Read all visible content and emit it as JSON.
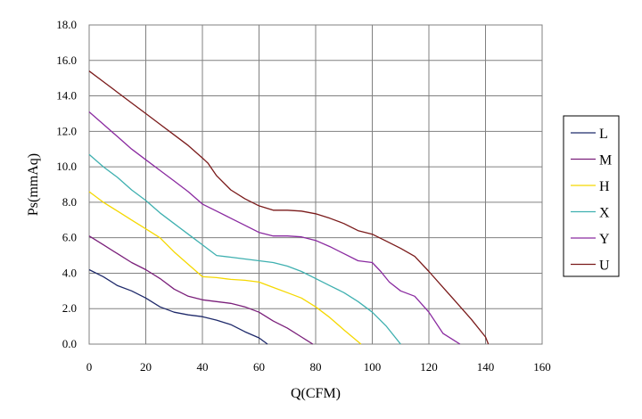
{
  "chart_data": {
    "type": "line",
    "title": "",
    "xlabel": "Q(CFM)",
    "ylabel": "Ps(mmAq)",
    "xlim": [
      0,
      160
    ],
    "ylim": [
      0,
      18
    ],
    "x_ticks": [
      "0",
      "20",
      "40",
      "60",
      "80",
      "100",
      "120",
      "140",
      "160"
    ],
    "y_ticks": [
      "0.0",
      "2.0",
      "4.0",
      "6.0",
      "8.0",
      "10.0",
      "12.0",
      "14.0",
      "16.0",
      "18.0"
    ],
    "grid": true,
    "legend_position": "right",
    "series": [
      {
        "name": "L",
        "color": "#1f2a6b",
        "points": [
          [
            0,
            4.2
          ],
          [
            5,
            3.8
          ],
          [
            10,
            3.3
          ],
          [
            15,
            3.0
          ],
          [
            20,
            2.6
          ],
          [
            25,
            2.1
          ],
          [
            30,
            1.8
          ],
          [
            35,
            1.65
          ],
          [
            40,
            1.55
          ],
          [
            45,
            1.35
          ],
          [
            50,
            1.1
          ],
          [
            55,
            0.7
          ],
          [
            60,
            0.35
          ],
          [
            63,
            0
          ]
        ]
      },
      {
        "name": "M",
        "color": "#7a1f7a",
        "points": [
          [
            0,
            6.1
          ],
          [
            5,
            5.6
          ],
          [
            10,
            5.1
          ],
          [
            15,
            4.6
          ],
          [
            20,
            4.2
          ],
          [
            25,
            3.7
          ],
          [
            30,
            3.1
          ],
          [
            35,
            2.7
          ],
          [
            40,
            2.5
          ],
          [
            45,
            2.4
          ],
          [
            50,
            2.3
          ],
          [
            55,
            2.1
          ],
          [
            60,
            1.8
          ],
          [
            65,
            1.3
          ],
          [
            70,
            0.9
          ],
          [
            75,
            0.4
          ],
          [
            79,
            0
          ]
        ]
      },
      {
        "name": "H",
        "color": "#f5d800",
        "points": [
          [
            0,
            8.6
          ],
          [
            5,
            8.0
          ],
          [
            10,
            7.5
          ],
          [
            15,
            7.0
          ],
          [
            20,
            6.5
          ],
          [
            25,
            6.0
          ],
          [
            30,
            5.2
          ],
          [
            35,
            4.5
          ],
          [
            40,
            3.8
          ],
          [
            45,
            3.75
          ],
          [
            50,
            3.65
          ],
          [
            55,
            3.6
          ],
          [
            60,
            3.5
          ],
          [
            65,
            3.2
          ],
          [
            70,
            2.9
          ],
          [
            75,
            2.6
          ],
          [
            80,
            2.1
          ],
          [
            85,
            1.5
          ],
          [
            90,
            0.8
          ],
          [
            96,
            0
          ]
        ]
      },
      {
        "name": "X",
        "color": "#3fb0b0",
        "points": [
          [
            0,
            10.7
          ],
          [
            5,
            10.0
          ],
          [
            10,
            9.4
          ],
          [
            15,
            8.7
          ],
          [
            20,
            8.1
          ],
          [
            25,
            7.4
          ],
          [
            30,
            6.8
          ],
          [
            35,
            6.2
          ],
          [
            40,
            5.6
          ],
          [
            45,
            5.0
          ],
          [
            50,
            4.9
          ],
          [
            55,
            4.8
          ],
          [
            60,
            4.7
          ],
          [
            65,
            4.6
          ],
          [
            70,
            4.4
          ],
          [
            75,
            4.1
          ],
          [
            80,
            3.7
          ],
          [
            85,
            3.3
          ],
          [
            90,
            2.9
          ],
          [
            95,
            2.4
          ],
          [
            100,
            1.8
          ],
          [
            105,
            1.0
          ],
          [
            110,
            0
          ]
        ]
      },
      {
        "name": "Y",
        "color": "#8a2aa0",
        "points": [
          [
            0,
            13.1
          ],
          [
            5,
            12.4
          ],
          [
            10,
            11.7
          ],
          [
            15,
            11.0
          ],
          [
            20,
            10.4
          ],
          [
            25,
            9.8
          ],
          [
            30,
            9.2
          ],
          [
            35,
            8.6
          ],
          [
            40,
            7.9
          ],
          [
            45,
            7.5
          ],
          [
            50,
            7.1
          ],
          [
            55,
            6.7
          ],
          [
            60,
            6.3
          ],
          [
            65,
            6.1
          ],
          [
            70,
            6.1
          ],
          [
            75,
            6.05
          ],
          [
            80,
            5.85
          ],
          [
            85,
            5.5
          ],
          [
            90,
            5.1
          ],
          [
            95,
            4.7
          ],
          [
            100,
            4.6
          ],
          [
            103,
            4.1
          ],
          [
            106,
            3.5
          ],
          [
            110,
            3.0
          ],
          [
            115,
            2.7
          ],
          [
            120,
            1.8
          ],
          [
            125,
            0.6
          ],
          [
            131,
            0
          ]
        ]
      },
      {
        "name": "U",
        "color": "#7a1a1a",
        "points": [
          [
            0,
            15.4
          ],
          [
            5,
            14.8
          ],
          [
            10,
            14.2
          ],
          [
            15,
            13.6
          ],
          [
            20,
            13.0
          ],
          [
            25,
            12.4
          ],
          [
            30,
            11.8
          ],
          [
            35,
            11.2
          ],
          [
            40,
            10.5
          ],
          [
            42,
            10.2
          ],
          [
            45,
            9.5
          ],
          [
            50,
            8.7
          ],
          [
            55,
            8.2
          ],
          [
            60,
            7.8
          ],
          [
            65,
            7.55
          ],
          [
            70,
            7.55
          ],
          [
            75,
            7.5
          ],
          [
            80,
            7.35
          ],
          [
            85,
            7.1
          ],
          [
            90,
            6.8
          ],
          [
            95,
            6.4
          ],
          [
            100,
            6.2
          ],
          [
            105,
            5.8
          ],
          [
            110,
            5.4
          ],
          [
            115,
            4.95
          ],
          [
            120,
            4.1
          ],
          [
            125,
            3.2
          ],
          [
            130,
            2.3
          ],
          [
            135,
            1.4
          ],
          [
            140,
            0.4
          ],
          [
            141,
            0
          ]
        ]
      }
    ]
  }
}
